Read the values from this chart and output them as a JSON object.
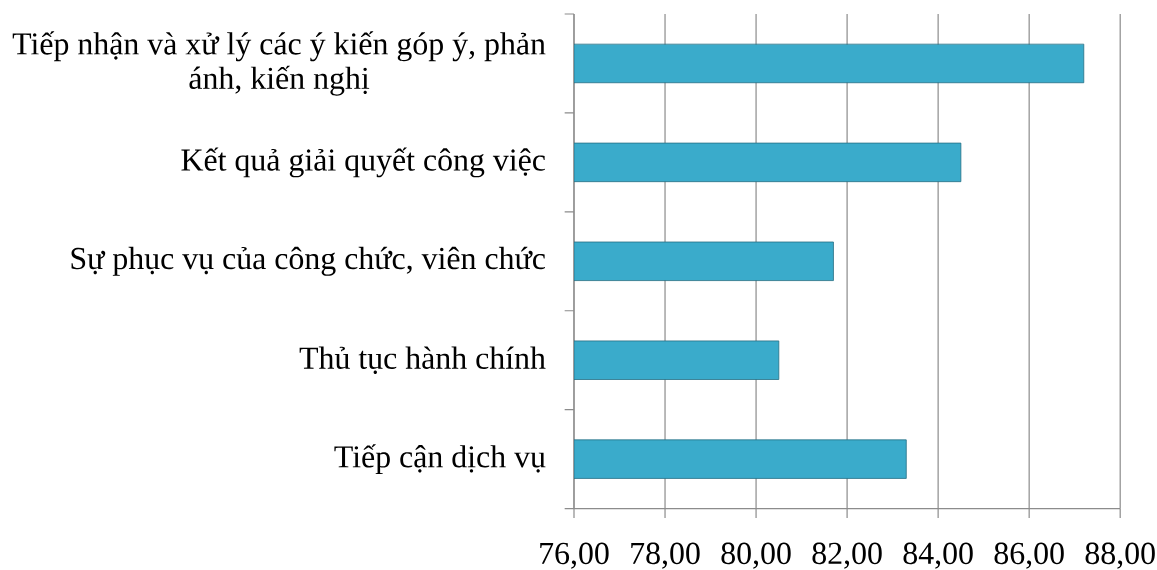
{
  "chart_data": {
    "type": "bar",
    "orientation": "horizontal",
    "categories": [
      "Tiếp nhận và xử lý các ý kiến góp ý, phản ánh, kiến nghị",
      "Kết quả giải quyết công việc",
      "Sự phục vụ của công chức, viên chức",
      "Thủ tục hành chính",
      "Tiếp cận dịch vụ"
    ],
    "values": [
      87.2,
      84.5,
      81.7,
      80.5,
      83.3
    ],
    "color": "#3aabcb",
    "xlim": [
      76,
      88
    ],
    "xticks": [
      {
        "value": 76,
        "label": "76,00"
      },
      {
        "value": 78,
        "label": "78,00"
      },
      {
        "value": 80,
        "label": "80,00"
      },
      {
        "value": 82,
        "label": "82,00"
      },
      {
        "value": 84,
        "label": "84,00"
      },
      {
        "value": 86,
        "label": "86,00"
      },
      {
        "value": 88,
        "label": "88,00"
      }
    ],
    "grid": "x"
  }
}
